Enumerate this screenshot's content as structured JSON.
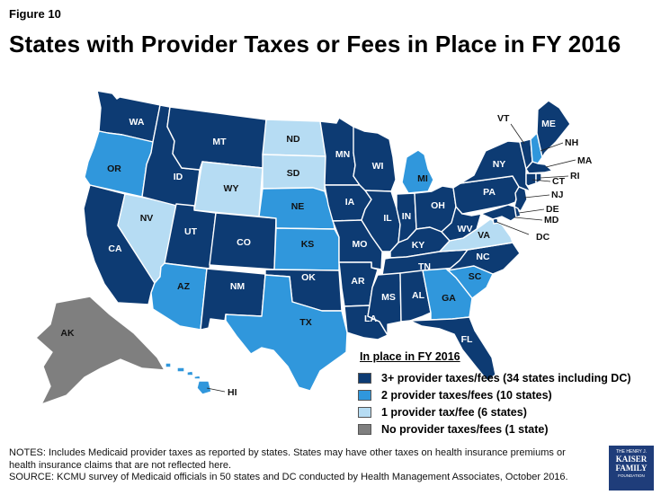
{
  "figure_label": "Figure 10",
  "title": "States with Provider Taxes or Fees in Place in FY 2016",
  "colors": {
    "cat3": "#0d3b73",
    "cat2": "#3097dc",
    "cat1": "#b6dcf3",
    "cat0": "#7f7f7f"
  },
  "legend": {
    "title": "In place in FY 2016",
    "items": [
      {
        "key": "cat3",
        "label": "3+ provider taxes/fees  (34 states including DC)"
      },
      {
        "key": "cat2",
        "label": "2 provider taxes/fees (10 states)"
      },
      {
        "key": "cat1",
        "label": "1 provider tax/fee  (6 states)"
      },
      {
        "key": "cat0",
        "label": "No provider taxes/fees (1 state)"
      }
    ]
  },
  "states": [
    {
      "code": "WA",
      "category": 3
    },
    {
      "code": "OR",
      "category": 2
    },
    {
      "code": "CA",
      "category": 3
    },
    {
      "code": "NV",
      "category": 1
    },
    {
      "code": "ID",
      "category": 3
    },
    {
      "code": "MT",
      "category": 3
    },
    {
      "code": "WY",
      "category": 1
    },
    {
      "code": "UT",
      "category": 3
    },
    {
      "code": "CO",
      "category": 3
    },
    {
      "code": "AZ",
      "category": 2
    },
    {
      "code": "NM",
      "category": 3
    },
    {
      "code": "ND",
      "category": 1
    },
    {
      "code": "SD",
      "category": 1
    },
    {
      "code": "NE",
      "category": 2
    },
    {
      "code": "KS",
      "category": 2
    },
    {
      "code": "OK",
      "category": 3
    },
    {
      "code": "TX",
      "category": 2
    },
    {
      "code": "MN",
      "category": 3
    },
    {
      "code": "IA",
      "category": 3
    },
    {
      "code": "MO",
      "category": 3
    },
    {
      "code": "AR",
      "category": 3
    },
    {
      "code": "LA",
      "category": 3
    },
    {
      "code": "WI",
      "category": 3
    },
    {
      "code": "IL",
      "category": 3
    },
    {
      "code": "MI",
      "category": 2
    },
    {
      "code": "IN",
      "category": 3
    },
    {
      "code": "OH",
      "category": 3
    },
    {
      "code": "KY",
      "category": 3
    },
    {
      "code": "TN",
      "category": 3
    },
    {
      "code": "MS",
      "category": 3
    },
    {
      "code": "AL",
      "category": 3
    },
    {
      "code": "GA",
      "category": 2
    },
    {
      "code": "FL",
      "category": 3
    },
    {
      "code": "SC",
      "category": 2
    },
    {
      "code": "NC",
      "category": 3
    },
    {
      "code": "VA",
      "category": 1
    },
    {
      "code": "WV",
      "category": 3
    },
    {
      "code": "PA",
      "category": 3
    },
    {
      "code": "NY",
      "category": 3
    },
    {
      "code": "VT",
      "category": 3
    },
    {
      "code": "NH",
      "category": 2
    },
    {
      "code": "ME",
      "category": 3
    },
    {
      "code": "MA",
      "category": 3
    },
    {
      "code": "RI",
      "category": 3
    },
    {
      "code": "CT",
      "category": 3
    },
    {
      "code": "NJ",
      "category": 3
    },
    {
      "code": "DE",
      "category": 3
    },
    {
      "code": "MD",
      "category": 3
    },
    {
      "code": "DC",
      "category": 3
    },
    {
      "code": "AK",
      "category": 0
    },
    {
      "code": "HI",
      "category": 2
    }
  ],
  "notes": {
    "line1": "NOTES: Includes Medicaid provider taxes as reported by states. States may have other taxes on health insurance premiums or",
    "line2": "health insurance claims that are not reflected here.",
    "line3": "SOURCE: KCMU survey of Medicaid officials in 50 states and DC conducted by Health Management Associates, October 2016."
  },
  "logo": {
    "line1": "THE HENRY J.",
    "line2a": "KAISER",
    "line2b": "FAMILY",
    "line3": "FOUNDATION"
  }
}
